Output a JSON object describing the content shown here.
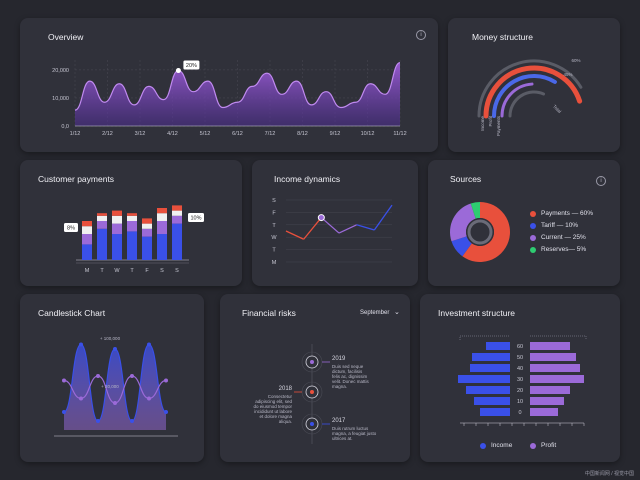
{
  "overview": {
    "title": "Overview",
    "info_icon": "info-icon",
    "callout": "20%",
    "chart_data": {
      "type": "area",
      "x_labels": [
        "1/12",
        "2/12",
        "3/12",
        "4/12",
        "5/12",
        "6/12",
        "7/12",
        "8/12",
        "9/12",
        "10/12",
        "11/12"
      ],
      "y_ticks": [
        "0,0",
        "10,000",
        "20,000"
      ],
      "ylim": [
        0,
        25000
      ],
      "values": [
        6000,
        17000,
        9000,
        16000,
        8000,
        15000,
        10000,
        21000,
        13000,
        17000,
        7000,
        9000,
        15000,
        20000,
        12000,
        17000,
        8000,
        13000,
        7000,
        9000,
        16000,
        12000,
        24000
      ],
      "color": "#9b59d6"
    }
  },
  "money": {
    "title": "Money structure",
    "chart_data": {
      "type": "pie",
      "categories": [
        "Income",
        "Profit",
        "Payments",
        "Total"
      ],
      "values": [
        60,
        45,
        null,
        null
      ],
      "value_labels": [
        "60%",
        "45%",
        "",
        ""
      ],
      "colors": [
        "#e8503c",
        "#4a68e8",
        "#9b6ad8",
        "#5a5c66"
      ]
    }
  },
  "customer": {
    "title": "Customer payments",
    "callouts": [
      "8%",
      "10%"
    ],
    "chart_data": {
      "type": "bar",
      "categories": [
        "M",
        "T",
        "W",
        "T",
        "F",
        "S",
        "S"
      ],
      "series": [
        {
          "values": [
            6,
            12,
            10,
            11,
            9,
            10,
            14
          ],
          "color": "#3a50e8"
        },
        {
          "values": [
            4,
            3,
            4,
            4,
            3,
            5,
            3
          ],
          "color": "#9b6ad8"
        },
        {
          "values": [
            3,
            2,
            3,
            2,
            2,
            3,
            2
          ],
          "color": "#f0f0f0"
        },
        {
          "values": [
            2,
            1,
            2,
            1,
            2,
            2,
            2
          ],
          "color": "#e8503c"
        }
      ]
    }
  },
  "income": {
    "title": "Income dynamics",
    "chart_data": {
      "type": "line",
      "y_ticks": [
        "S",
        "F",
        "T",
        "W",
        "T",
        "M"
      ],
      "series": [
        {
          "values": [
            3,
            2.2,
            4.3,
            2.8,
            3.6,
            3.1,
            5.5
          ],
          "colors": [
            "#e8503c",
            "#9b6ad8",
            "#3a50e8"
          ]
        }
      ]
    }
  },
  "sources": {
    "title": "Sources",
    "info_icon": "info-icon",
    "chart_data": {
      "type": "pie",
      "categories": [
        "Payments",
        "Tariff",
        "Current",
        "Reserves"
      ],
      "values": [
        60,
        10,
        25,
        5
      ],
      "colors": [
        "#e8503c",
        "#3a50e8",
        "#9b6ad8",
        "#2ecc71"
      ]
    },
    "legend": [
      "Payments — 60%",
      "Tariff — 10%",
      "Current — 25%",
      "Reserves— 5%"
    ]
  },
  "candle": {
    "title": "Candlestick Chart",
    "top_label": "+ 100,000",
    "mid_label": "+ 20,000",
    "chart_data": {
      "type": "line",
      "series": [
        {
          "values": [
            0.2,
            0.95,
            0.1,
            0.9,
            0.1,
            0.95,
            0.2
          ],
          "color": "#3a50e8"
        },
        {
          "values": [
            0.55,
            0.35,
            0.6,
            0.3,
            0.6,
            0.35,
            0.55
          ],
          "color": "#9b6ad8"
        }
      ]
    }
  },
  "risks": {
    "title": "Financial risks",
    "dropdown": "September",
    "items": [
      {
        "year": "2019",
        "text": "Duis sed neque dictum, facilisis felis ac, dignissim velit. Donec mattis magna."
      },
      {
        "year": "2018",
        "text": "Consectetur adipiscing elit, sed do eiusmod tempor incididunt ut labore et dolore magna aliqua."
      },
      {
        "year": "2017",
        "text": "Duis rutrum luctus magna, a feugiat justo ultrices at."
      }
    ]
  },
  "investment": {
    "title": "Investment structure",
    "legend": [
      "Income",
      "Profit"
    ],
    "chart_data": {
      "type": "bar",
      "categories": [
        "60",
        "50",
        "40",
        "30",
        "20",
        "10",
        "0"
      ],
      "series": [
        {
          "name": "Income",
          "values": [
            24,
            38,
            40,
            52,
            44,
            36,
            30
          ],
          "color": "#3a50e8"
        },
        {
          "name": "Profit",
          "values": [
            40,
            46,
            50,
            54,
            40,
            34,
            28
          ],
          "color": "#9b6ad8"
        }
      ]
    }
  },
  "watermark": "中国新闻网 / 视觉中国"
}
